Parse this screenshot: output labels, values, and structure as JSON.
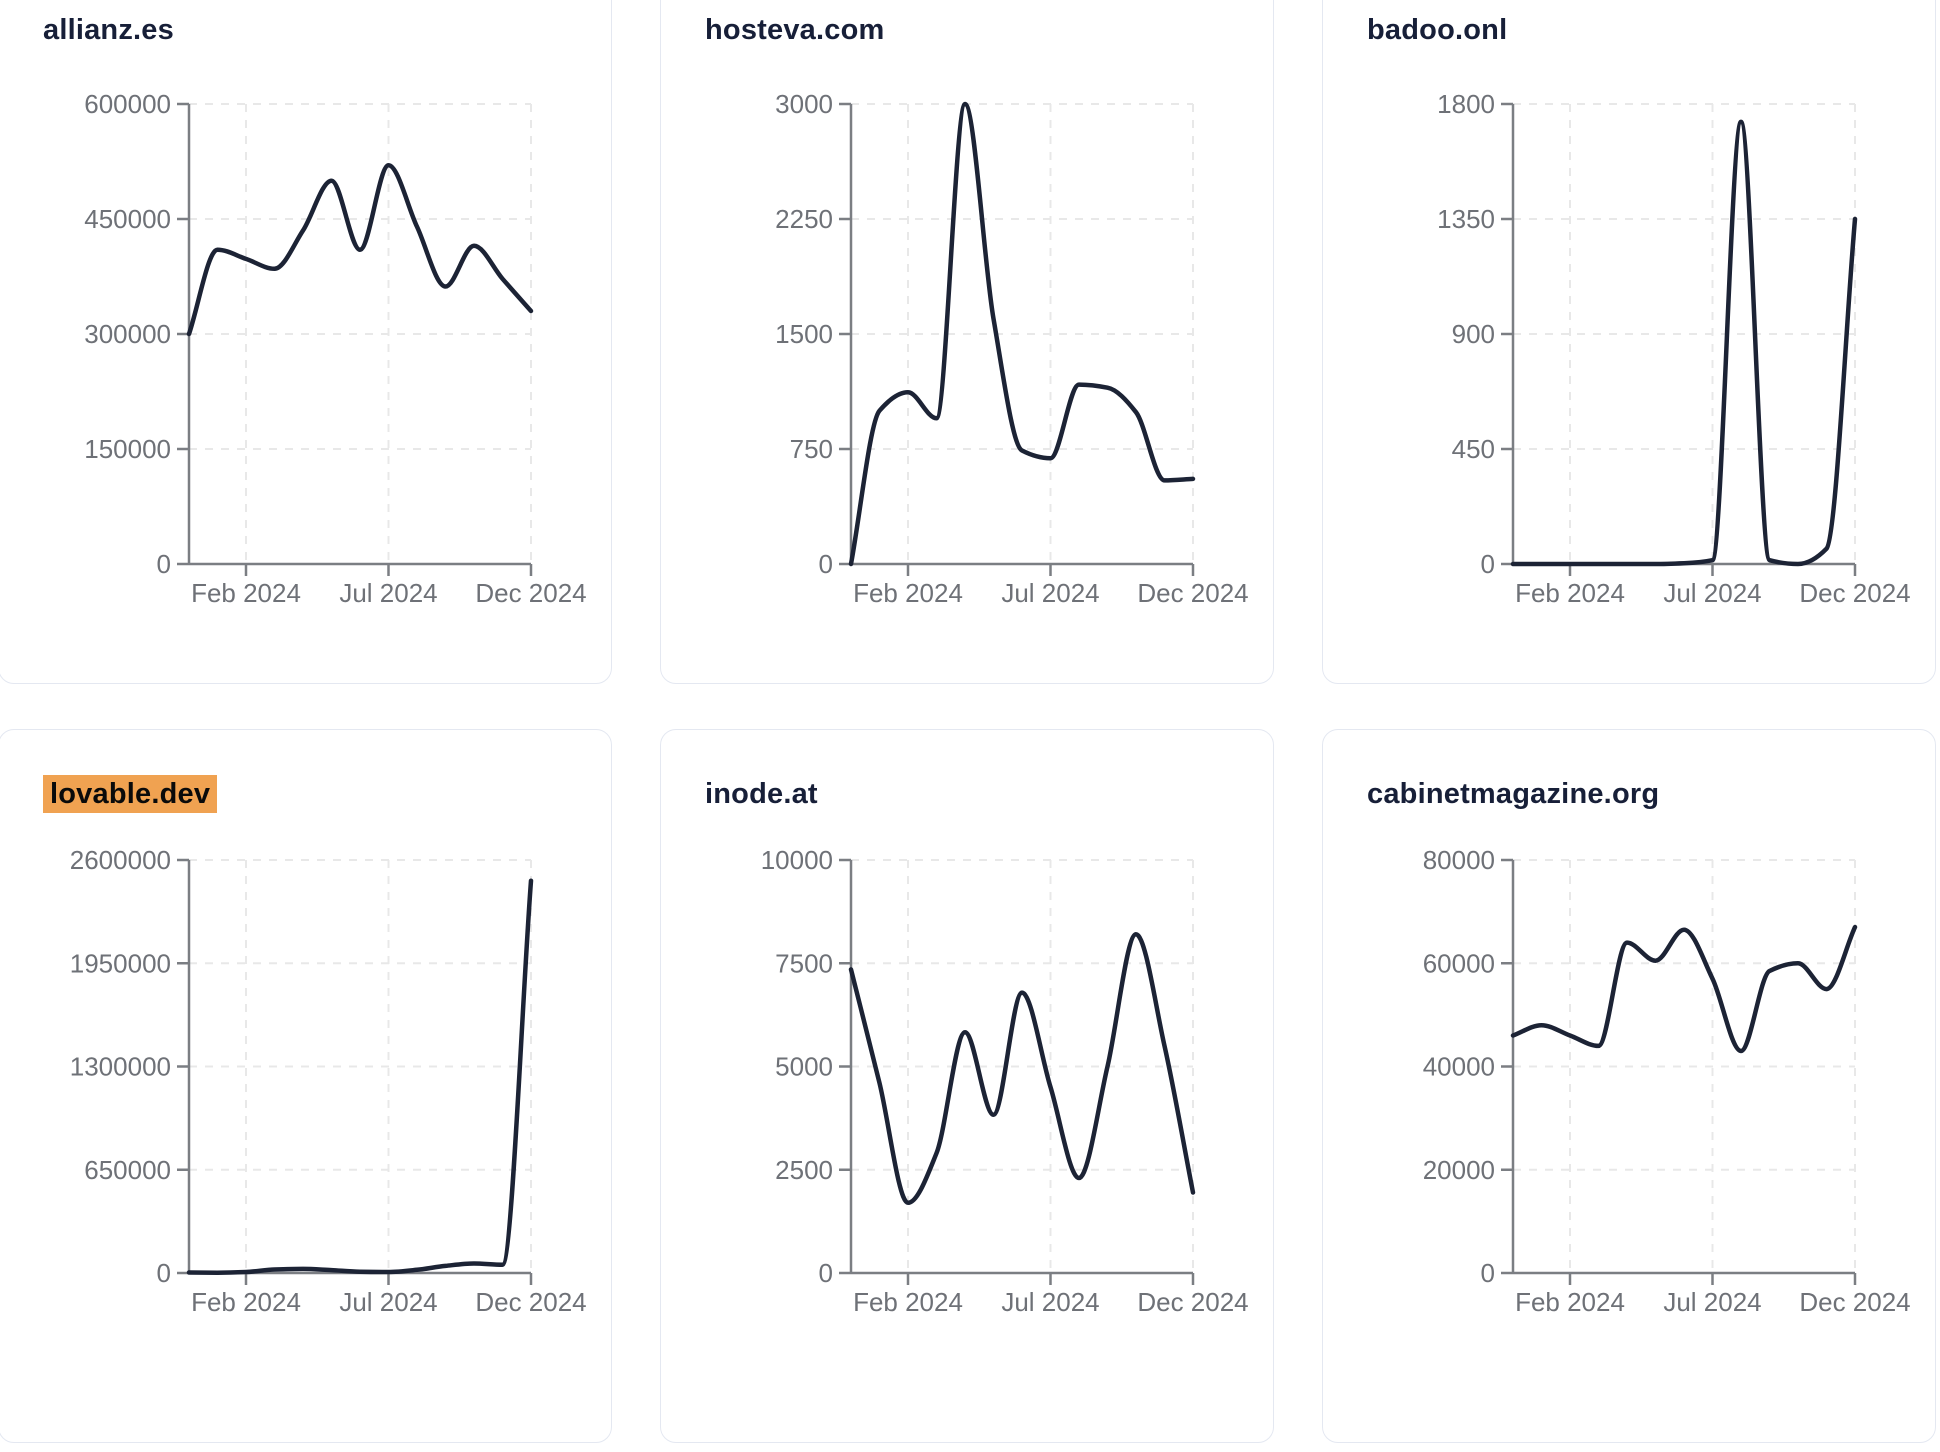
{
  "page": {
    "background": "#ffffff"
  },
  "style": {
    "series_line_color": "#1c2335",
    "title_color": "#171f38",
    "tick_label_color": "#6e7177",
    "axis_color": "#7b7e83",
    "gridline_color": "#e8e8e8",
    "card_border_color": "#e4e8f1",
    "highlight_color": "#f0a251"
  },
  "chart_data": [
    {
      "type": "line",
      "title": "allianz.es",
      "title_highlight": false,
      "row": 1,
      "x": [
        "Dec 2023",
        "Jan 2024",
        "Feb 2024",
        "Mar 2024",
        "Apr 2024",
        "May 2024",
        "Jun 2024",
        "Jul 2024",
        "Aug 2024",
        "Sep 2024",
        "Oct 2024",
        "Nov 2024",
        "Dec 2024"
      ],
      "values": [
        300000,
        410000,
        398000,
        385000,
        435000,
        500000,
        410000,
        520000,
        440000,
        362000,
        415000,
        372000,
        330000
      ],
      "y_ticks": [
        600000,
        450000,
        300000,
        150000,
        0
      ],
      "x_tick_labels": [
        "Feb 2024",
        "Jul 2024",
        "Dec 2024"
      ],
      "ylim": [
        0,
        600000
      ],
      "grid": "dashed",
      "legend": "none"
    },
    {
      "type": "line",
      "title": "hosteva.com",
      "title_highlight": false,
      "row": 1,
      "x": [
        "Dec 2023",
        "Jan 2024",
        "Feb 2024",
        "Mar 2024",
        "Apr 2024",
        "May 2024",
        "Jun 2024",
        "Jul 2024",
        "Aug 2024",
        "Sep 2024",
        "Oct 2024",
        "Nov 2024",
        "Dec 2024"
      ],
      "values": [
        0,
        1000,
        1120,
        950,
        3000,
        1600,
        740,
        690,
        1170,
        1150,
        990,
        545,
        555
      ],
      "y_ticks": [
        3000,
        2250,
        1500,
        750,
        0
      ],
      "x_tick_labels": [
        "Feb 2024",
        "Jul 2024",
        "Dec 2024"
      ],
      "ylim": [
        0,
        3000
      ],
      "grid": "dashed",
      "legend": "none"
    },
    {
      "type": "line",
      "title": "badoo.onl",
      "title_highlight": false,
      "row": 1,
      "x": [
        "Dec 2023",
        "Jan 2024",
        "Feb 2024",
        "Mar 2024",
        "Apr 2024",
        "May 2024",
        "Jun 2024",
        "Jul 2024",
        "Aug 2024",
        "Sep 2024",
        "Oct 2024",
        "Nov 2024",
        "Dec 2024"
      ],
      "values": [
        0,
        0,
        0,
        0,
        0,
        0,
        3,
        15,
        1730,
        15,
        0,
        60,
        1350
      ],
      "y_ticks": [
        1800,
        1350,
        900,
        450,
        0
      ],
      "x_tick_labels": [
        "Feb 2024",
        "Jul 2024",
        "Dec 2024"
      ],
      "ylim": [
        0,
        1800
      ],
      "grid": "dashed",
      "legend": "none"
    },
    {
      "type": "line",
      "title": "lovable.dev",
      "title_highlight": true,
      "row": 2,
      "x": [
        "Dec 2023",
        "Jan 2024",
        "Feb 2024",
        "Mar 2024",
        "Apr 2024",
        "May 2024",
        "Jun 2024",
        "Jul 2024",
        "Aug 2024",
        "Sep 2024",
        "Oct 2024",
        "Nov 2024",
        "Dec 2024"
      ],
      "values": [
        3000,
        2000,
        6000,
        22000,
        26000,
        18000,
        8000,
        6000,
        20000,
        45000,
        60000,
        52000,
        2470000
      ],
      "y_ticks": [
        2600000,
        1950000,
        1300000,
        650000,
        0
      ],
      "x_tick_labels": [
        "Feb 2024",
        "Jul 2024",
        "Dec 2024"
      ],
      "ylim": [
        0,
        2600000
      ],
      "grid": "dashed",
      "legend": "none"
    },
    {
      "type": "line",
      "title": "inode.at",
      "title_highlight": false,
      "row": 2,
      "x": [
        "Dec 2023",
        "Jan 2024",
        "Feb 2024",
        "Mar 2024",
        "Apr 2024",
        "May 2024",
        "Jun 2024",
        "Jul 2024",
        "Aug 2024",
        "Sep 2024",
        "Oct 2024",
        "Nov 2024",
        "Dec 2024"
      ],
      "values": [
        7350,
        4600,
        1700,
        2900,
        5830,
        3830,
        6790,
        4500,
        2300,
        5000,
        8200,
        5500,
        1950
      ],
      "y_ticks": [
        10000,
        7500,
        5000,
        2500,
        0
      ],
      "x_tick_labels": [
        "Feb 2024",
        "Jul 2024",
        "Dec 2024"
      ],
      "ylim": [
        0,
        10000
      ],
      "grid": "dashed",
      "legend": "none"
    },
    {
      "type": "line",
      "title": "cabinetmagazine.org",
      "title_highlight": false,
      "row": 2,
      "x": [
        "Dec 2023",
        "Jan 2024",
        "Feb 2024",
        "Mar 2024",
        "Apr 2024",
        "May 2024",
        "Jun 2024",
        "Jul 2024",
        "Aug 2024",
        "Sep 2024",
        "Oct 2024",
        "Nov 2024",
        "Dec 2024"
      ],
      "values": [
        46000,
        48000,
        46000,
        44000,
        64000,
        60500,
        66500,
        57000,
        43000,
        58500,
        60000,
        55000,
        67000
      ],
      "y_ticks": [
        80000,
        60000,
        40000,
        20000,
        0
      ],
      "x_tick_labels": [
        "Feb 2024",
        "Jul 2024",
        "Dec 2024"
      ],
      "ylim": [
        0,
        80000
      ],
      "grid": "dashed",
      "legend": "none"
    }
  ]
}
